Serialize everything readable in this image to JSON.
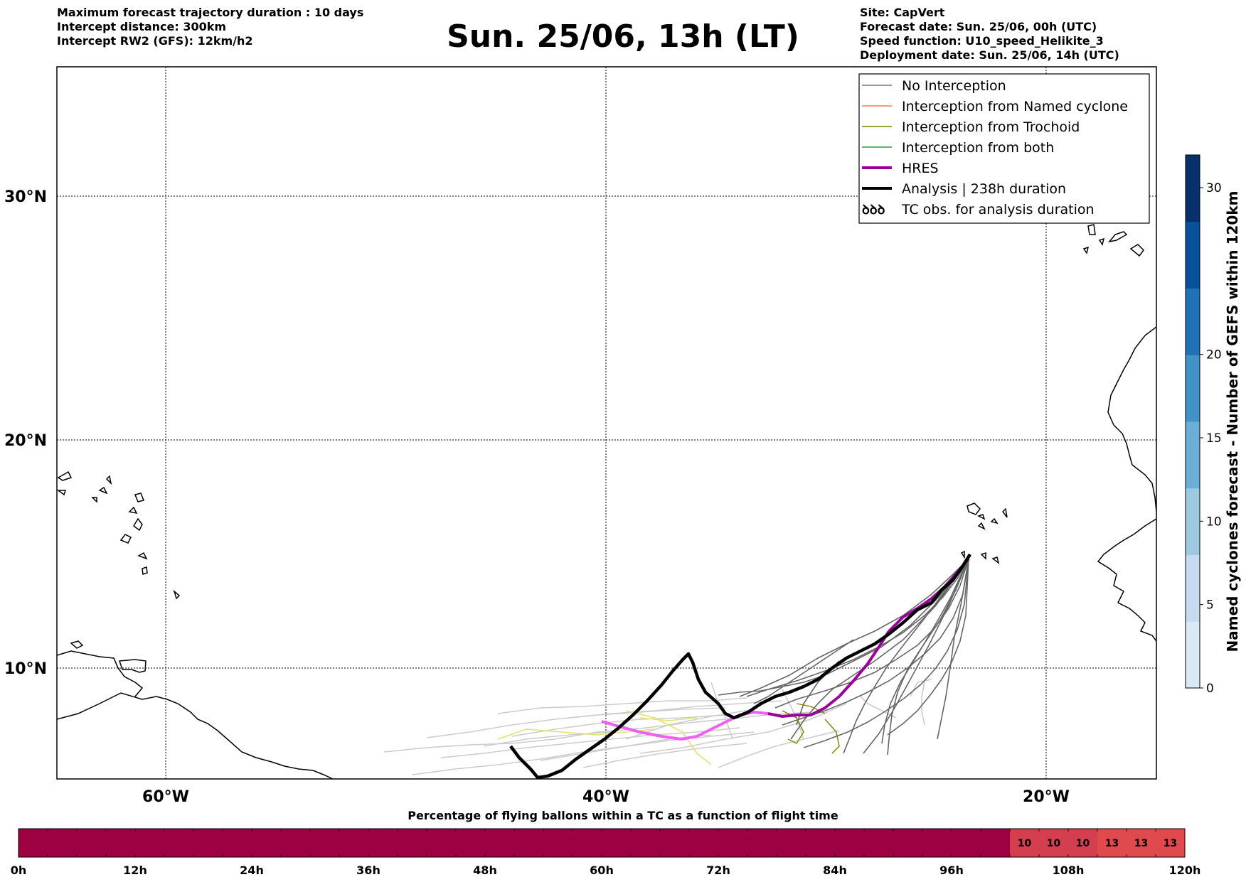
{
  "header_left": [
    "Maximum forecast trajectory duration : 10 days",
    "Intercept distance: 300km",
    "Intercept RW2 (GFS):  12km/h2"
  ],
  "title": "Sun. 25/06, 13h (LT)",
  "header_right": [
    "Site: CapVert",
    "Forecast date: Sun. 25/06, 00h (UTC)",
    "Speed function: U10_speed_Helikite_3",
    "Deployment date: Sun. 25/06, 14h (UTC)"
  ],
  "map": {
    "lat_labels": [
      "30°N",
      "20°N",
      "10°N"
    ],
    "lon_labels": [
      "60°W",
      "40°W",
      "20°W"
    ]
  },
  "legend": [
    {
      "label": "No Interception",
      "color": "#777777",
      "kind": "thin"
    },
    {
      "label": "Interception from Named cyclone",
      "color": "#ff7f50",
      "kind": "thin"
    },
    {
      "label": "Interception from Trochoid",
      "color": "#808000",
      "kind": "thin"
    },
    {
      "label": "Interception from both",
      "color": "#2ca02c",
      "kind": "thin"
    },
    {
      "label": "HRES",
      "color": "#990099",
      "kind": "thick"
    },
    {
      "label": "Analysis | 238h duration",
      "color": "#000000",
      "kind": "thick"
    },
    {
      "label": "TC obs. for analysis duration",
      "color": "#000000",
      "kind": "symbol"
    }
  ],
  "colorbar": {
    "label": "Named cyclones forecast - Number of GEFS within 120km",
    "ticks": [
      "0",
      "5",
      "10",
      "15",
      "20",
      "30"
    ],
    "colors": [
      "#dbe9f6",
      "#c6dbef",
      "#9ecae1",
      "#6baed6",
      "#4292c6",
      "#2171b5",
      "#08519c",
      "#08306b"
    ]
  },
  "bottom": {
    "title": "Percentage of flying ballons within a TC as a function of flight time",
    "time_labels": [
      "0h",
      "12h",
      "24h",
      "36h",
      "48h",
      "60h",
      "72h",
      "84h",
      "96h",
      "108h",
      "120h"
    ],
    "cells": [
      {
        "value": "",
        "color": "#9e0142"
      },
      {
        "value": "10",
        "color": "#d53e4f"
      },
      {
        "value": "10",
        "color": "#d53e4f"
      },
      {
        "value": "10",
        "color": "#d53e4f"
      },
      {
        "value": "13",
        "color": "#e04a4d"
      },
      {
        "value": "13",
        "color": "#e04a4d"
      },
      {
        "value": "13",
        "color": "#e04a4d"
      }
    ]
  }
}
